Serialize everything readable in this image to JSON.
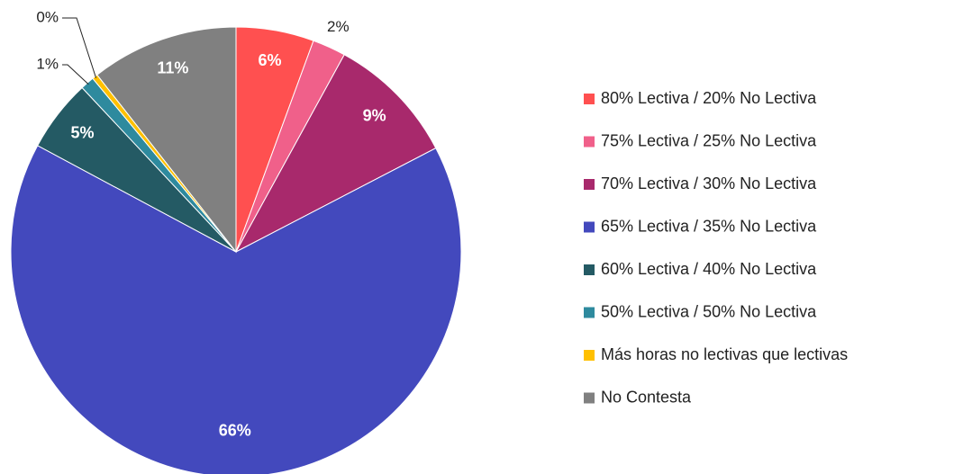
{
  "chart_data": {
    "type": "pie",
    "categories": [
      "80% Lectiva / 20% No Lectiva",
      "75% Lectiva / 25% No Lectiva",
      "70% Lectiva / 30% No Lectiva",
      "65% Lectiva / 35% No Lectiva",
      "60% Lectiva / 40% No Lectiva",
      "50% Lectiva / 50% No Lectiva",
      "Más horas no lectivas que lectivas",
      "No Contesta"
    ],
    "values": [
      5.6,
      2.4,
      9.4,
      65.6,
      5.2,
      1.0,
      0.4,
      10.6
    ],
    "value_labels": [
      "6%",
      "2%",
      "9%",
      "66%",
      "5%",
      "1%",
      "0%",
      "11%"
    ],
    "colors": [
      "#ff5050",
      "#f0608a",
      "#a8296c",
      "#4349bd",
      "#245a64",
      "#2e8a9e",
      "#ffc000",
      "#808080"
    ],
    "legend": "right"
  }
}
